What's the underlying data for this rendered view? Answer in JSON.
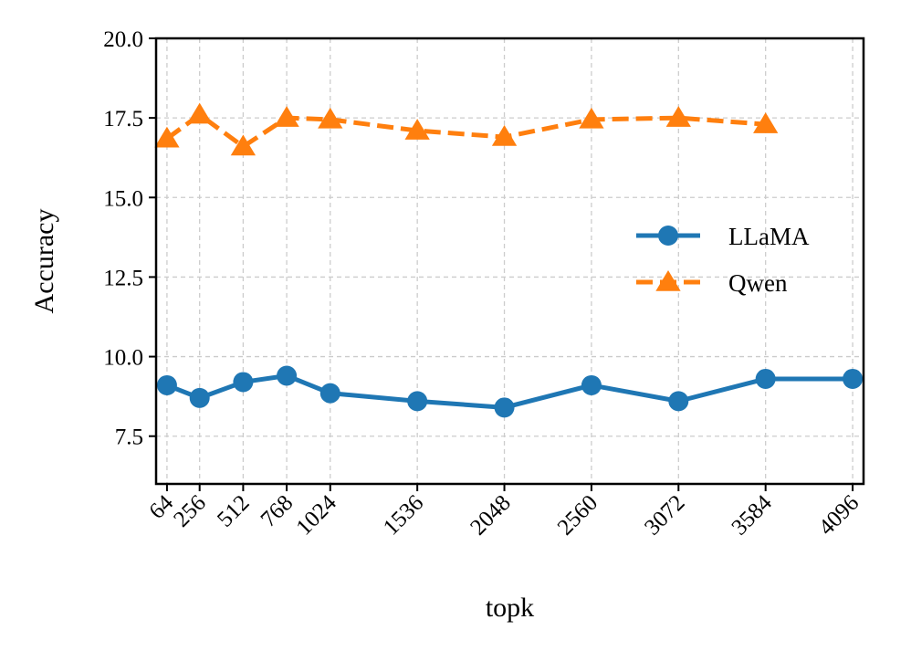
{
  "chart_data": {
    "type": "line",
    "title": "",
    "xlabel": "topk",
    "ylabel": "Accuracy",
    "x": [
      64,
      256,
      512,
      768,
      1024,
      1536,
      2048,
      2560,
      3072,
      3584,
      4096
    ],
    "x_tick_labels": [
      "64",
      "256",
      "512",
      "768",
      "1024",
      "1536",
      "2048",
      "2560",
      "3072",
      "3584",
      "4096"
    ],
    "y_ticks": [
      7.5,
      10.0,
      12.5,
      15.0,
      17.5,
      20.0
    ],
    "y_tick_labels": [
      "7.5",
      "10.0",
      "12.5",
      "15.0",
      "17.5",
      "20.0"
    ],
    "xlim": [
      0,
      4160
    ],
    "ylim": [
      6.0,
      20.0
    ],
    "grid": true,
    "legend_position": "center-right",
    "series": [
      {
        "name": "LLaMA",
        "color": "#1f77b4",
        "marker": "circle",
        "linestyle": "solid",
        "x": [
          64,
          256,
          512,
          768,
          1024,
          1536,
          2048,
          2560,
          3072,
          3584,
          4096
        ],
        "values": [
          9.1,
          8.7,
          9.2,
          9.4,
          8.85,
          8.6,
          8.4,
          9.1,
          8.6,
          9.3,
          9.3
        ]
      },
      {
        "name": "Qwen",
        "color": "#ff7f0e",
        "marker": "triangle",
        "linestyle": "dashed",
        "x": [
          64,
          256,
          512,
          768,
          1024,
          1536,
          2048,
          2560,
          3072,
          3584
        ],
        "values": [
          16.85,
          17.6,
          16.6,
          17.5,
          17.45,
          17.1,
          16.9,
          17.45,
          17.5,
          17.3
        ]
      }
    ]
  }
}
